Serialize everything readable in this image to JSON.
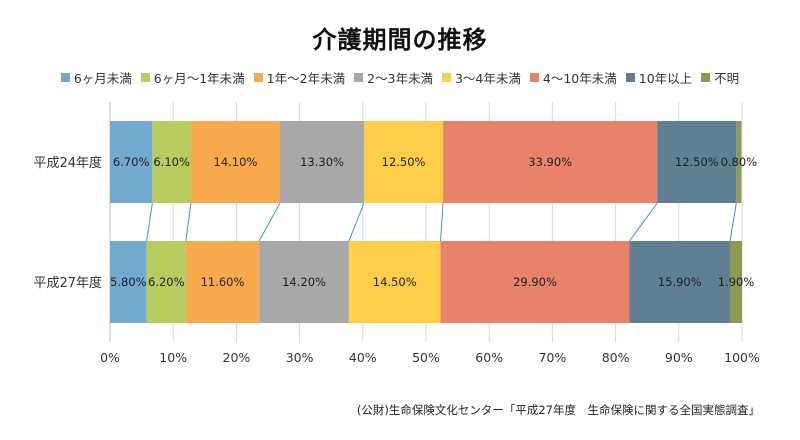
{
  "chart_data": {
    "type": "bar",
    "orientation": "horizontal",
    "stacked": "percent",
    "title": "介護期間の推移",
    "categories": [
      "平成24年度",
      "平成27年度"
    ],
    "series": [
      {
        "name": "6ヶ月未満",
        "color": "#72A9CE",
        "values": [
          6.7,
          5.8
        ],
        "labels": [
          "6.70%",
          "5.80%"
        ]
      },
      {
        "name": "6ヶ月〜1年未満",
        "color": "#B8CB5F",
        "values": [
          6.1,
          6.2
        ],
        "labels": [
          "6.10%",
          "6.20%"
        ]
      },
      {
        "name": "1年〜2年未満",
        "color": "#F7A94B",
        "values": [
          14.1,
          11.6
        ],
        "labels": [
          "14.10%",
          "11.60%"
        ]
      },
      {
        "name": "2〜3年未満",
        "color": "#A8A8A8",
        "values": [
          13.3,
          14.2
        ],
        "labels": [
          "13.30%",
          "14.20%"
        ]
      },
      {
        "name": "3〜4年未満",
        "color": "#FCCE4A",
        "values": [
          12.5,
          14.5
        ],
        "labels": [
          "12.50%",
          "14.50%"
        ]
      },
      {
        "name": "4〜10年未満",
        "color": "#E8836A",
        "values": [
          33.9,
          29.9
        ],
        "labels": [
          "33.90%",
          "29.90%"
        ]
      },
      {
        "name": "10年以上",
        "color": "#5F7F92",
        "values": [
          12.5,
          15.9
        ],
        "labels": [
          "12.50%",
          "15.90%"
        ]
      },
      {
        "name": "不明",
        "color": "#8C9A52",
        "values": [
          0.8,
          1.9
        ],
        "labels": [
          "0.80%",
          "1.90%"
        ]
      }
    ],
    "xlim": [
      0,
      100
    ],
    "xticks": [
      "0%",
      "10%",
      "20%",
      "30%",
      "40%",
      "50%",
      "60%",
      "70%",
      "80%",
      "90%",
      "100%"
    ],
    "legend_position": "top",
    "grid": true,
    "series_lines": true
  },
  "source_note": "(公財)生命保険文化センター「平成27年度　生命保険に関する全国実態調査」"
}
